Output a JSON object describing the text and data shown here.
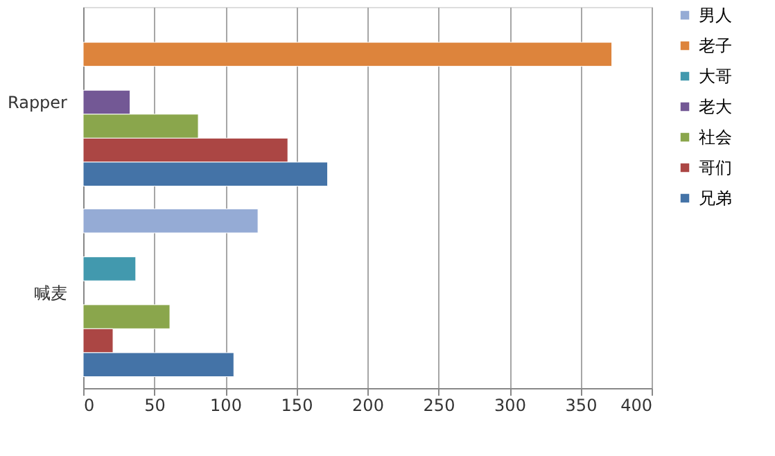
{
  "chart_data": {
    "type": "bar",
    "orientation": "horizontal",
    "categories": [
      "Rapper",
      "喊麦"
    ],
    "series": [
      {
        "name": "男人",
        "color": "#95abd5",
        "values": [
          null,
          123
        ]
      },
      {
        "name": "老子",
        "color": "#dd843c",
        "values": [
          372,
          null
        ]
      },
      {
        "name": "大哥",
        "color": "#4299ae",
        "values": [
          null,
          37
        ]
      },
      {
        "name": "老大",
        "color": "#735895",
        "values": [
          33,
          null
        ]
      },
      {
        "name": "社会",
        "color": "#8aa64c",
        "values": [
          81,
          61
        ]
      },
      {
        "name": "哥们",
        "color": "#ab4644",
        "values": [
          144,
          21
        ]
      },
      {
        "name": "兄弟",
        "color": "#4473a7",
        "values": [
          172,
          106
        ]
      }
    ],
    "xlim": [
      0,
      400
    ],
    "xticks": [
      0,
      50,
      100,
      150,
      200,
      250,
      300,
      350,
      400
    ],
    "grid": "x",
    "legend": "right"
  }
}
